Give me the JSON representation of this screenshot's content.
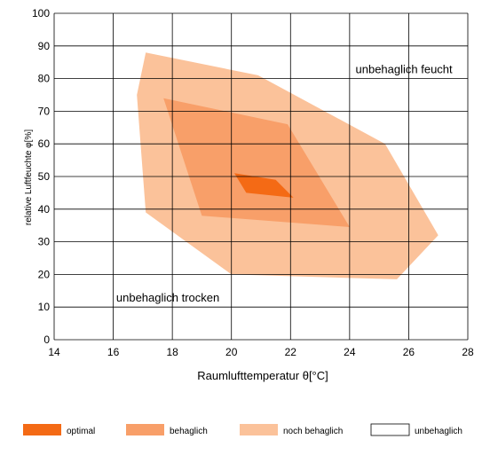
{
  "chart_data": {
    "type": "area",
    "title": "",
    "xlabel": "Raumlufttemperatur θ[°C]",
    "ylabel": "relative Luftfeuchte φ[%]",
    "xlim": [
      14,
      28
    ],
    "ylim": [
      0,
      100
    ],
    "x_ticks": [
      "14",
      "16",
      "18",
      "20",
      "22",
      "24",
      "26",
      "28"
    ],
    "y_ticks": [
      "0",
      "10",
      "20",
      "30",
      "40",
      "50",
      "60",
      "70",
      "80",
      "90",
      "100"
    ],
    "grid": true,
    "legend_position": "bottom",
    "series": [
      {
        "name": "noch behaglich",
        "color": "#fbc29a",
        "points": [
          [
            17.1,
            88
          ],
          [
            20.9,
            81
          ],
          [
            25.2,
            60
          ],
          [
            27.0,
            32
          ],
          [
            25.6,
            18.5
          ],
          [
            20.0,
            20
          ],
          [
            17.1,
            39
          ],
          [
            16.8,
            75
          ]
        ]
      },
      {
        "name": "behaglich",
        "color": "#f89f69",
        "points": [
          [
            17.7,
            74
          ],
          [
            21.9,
            66
          ],
          [
            24.0,
            34.5
          ],
          [
            19.0,
            38
          ]
        ]
      },
      {
        "name": "optimal",
        "color": "#f46a15",
        "points": [
          [
            20.1,
            51
          ],
          [
            21.5,
            49
          ],
          [
            22.1,
            43.5
          ],
          [
            20.5,
            45
          ]
        ]
      },
      {
        "name": "unbehaglich",
        "color": "#ffffff",
        "points": []
      }
    ],
    "annotations": [
      {
        "text": "unbehaglich feucht",
        "x": 24.2,
        "y": 83
      },
      {
        "text": "unbehaglich trocken",
        "x": 16.1,
        "y": 13
      }
    ]
  }
}
